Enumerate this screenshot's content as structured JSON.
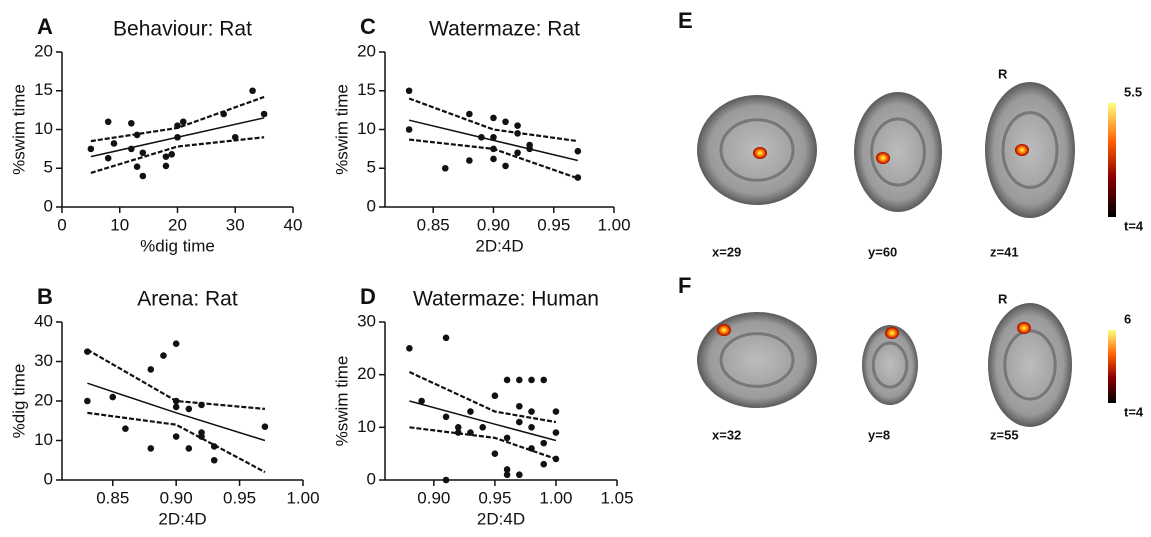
{
  "chart_data": [
    {
      "type": "scatter",
      "panel": "A",
      "title": "Behaviour:  Rat",
      "xlabel": "%dig time",
      "ylabel": "%swim time",
      "xlim": [
        0,
        40
      ],
      "xticks": [
        0,
        10,
        20,
        30,
        40
      ],
      "ylim": [
        0,
        20
      ],
      "yticks": [
        0,
        5,
        10,
        15,
        20
      ],
      "x": [
        5,
        8,
        9,
        8,
        12,
        12,
        13,
        13,
        14,
        14,
        18,
        18,
        19,
        20,
        20,
        21,
        28,
        30,
        33,
        35
      ],
      "values": [
        7.5,
        11,
        8.2,
        6.3,
        10.8,
        7.5,
        9.3,
        5.2,
        4,
        7,
        5.3,
        6.5,
        6.8,
        9,
        10.5,
        11,
        12,
        9,
        15,
        12
      ],
      "fit_x": [
        5,
        20,
        35
      ],
      "fit": [
        6.5,
        9,
        11.5
      ],
      "ci_upper": [
        8.5,
        10.2,
        14.2
      ],
      "ci_lower": [
        4.4,
        7.8,
        9
      ]
    },
    {
      "type": "scatter",
      "panel": "B",
      "title": "Arena:  Rat",
      "xlabel": "2D:4D",
      "ylabel": "%dig time",
      "xlim": [
        0.81,
        1.0
      ],
      "xticks": [
        0.85,
        {
          "value": 0.9,
          "label": "0.90"
        },
        0.95,
        {
          "value": 1,
          "label": "1.00"
        }
      ],
      "ylim": [
        0,
        40
      ],
      "yticks": [
        0,
        10,
        20,
        30,
        40
      ],
      "x": [
        0.83,
        0.83,
        0.85,
        0.86,
        0.88,
        0.88,
        0.89,
        0.9,
        0.9,
        0.9,
        0.9,
        0.91,
        0.91,
        0.92,
        0.92,
        0.92,
        0.93,
        0.93,
        0.97
      ],
      "values": [
        32.5,
        20,
        21,
        13,
        8,
        28,
        31.5,
        34.5,
        20,
        11,
        18.5,
        8,
        18,
        19,
        12,
        11,
        8.5,
        5,
        13.5
      ],
      "fit_x": [
        0.83,
        0.9,
        0.97
      ],
      "fit": [
        24.5,
        17,
        10
      ],
      "ci_upper": [
        33,
        20,
        18
      ],
      "ci_lower": [
        17,
        14,
        2
      ]
    },
    {
      "type": "scatter",
      "panel": "C",
      "title": "Watermaze: Rat",
      "xlabel": "2D:4D",
      "ylabel": "%swim time",
      "xlim": [
        0.81,
        1.0
      ],
      "xticks": [
        0.85,
        {
          "value": 0.9,
          "label": "0.90"
        },
        0.95,
        {
          "value": 1,
          "label": "1.00"
        }
      ],
      "ylim": [
        0,
        20
      ],
      "yticks": [
        0,
        5,
        10,
        15,
        20
      ],
      "x": [
        0.83,
        0.83,
        0.86,
        0.88,
        0.88,
        0.89,
        0.9,
        0.9,
        0.9,
        0.9,
        0.91,
        0.91,
        0.92,
        0.92,
        0.92,
        0.93,
        0.93,
        0.97,
        0.97
      ],
      "values": [
        15,
        10,
        5,
        12,
        6,
        9,
        11.5,
        9,
        7.5,
        6.2,
        11,
        5.3,
        9.5,
        10.5,
        7,
        8,
        7.5,
        7.2,
        3.8
      ],
      "fit_x": [
        0.83,
        0.9,
        0.97
      ],
      "fit": [
        11.2,
        8.6,
        6
      ],
      "ci_upper": [
        14,
        10,
        8.5
      ],
      "ci_lower": [
        8.7,
        7.5,
        3.7
      ]
    },
    {
      "type": "scatter",
      "panel": "D",
      "title": "Watermaze: Human",
      "xlabel": "2D:4D",
      "ylabel": "%swim time",
      "xlim": [
        0.86,
        1.05
      ],
      "xticks": [
        {
          "value": 0.9,
          "label": "0.90"
        },
        0.95,
        {
          "value": 1,
          "label": "1.00"
        },
        1.05
      ],
      "ylim": [
        0,
        30
      ],
      "yticks": [
        0,
        10,
        20,
        30
      ],
      "x": [
        0.88,
        0.89,
        0.91,
        0.91,
        0.92,
        0.92,
        0.93,
        0.93,
        0.94,
        0.95,
        0.95,
        0.96,
        0.96,
        0.96,
        0.97,
        0.97,
        0.97,
        0.97,
        0.98,
        0.98,
        0.98,
        0.98,
        0.99,
        0.99,
        0.99,
        1.0,
        1.0,
        1.0,
        0.91,
        0.96
      ],
      "values": [
        25,
        15,
        27,
        12,
        9,
        10,
        13,
        9,
        10,
        16,
        5,
        2,
        19,
        8,
        19,
        14,
        11,
        1,
        19,
        13,
        10,
        6,
        19,
        3,
        7,
        13,
        9,
        4,
        0,
        1
      ],
      "fit_x": [
        0.88,
        0.95,
        1.0
      ],
      "fit": [
        15,
        10.6,
        7.5
      ],
      "ci_upper": [
        20.5,
        13,
        11
      ],
      "ci_lower": [
        10,
        8,
        4
      ]
    }
  ],
  "brain_panels": [
    {
      "panel": "E",
      "slices": [
        "x=29",
        "y=60",
        "z=41"
      ],
      "orientation": "R",
      "colorbar_ticks": [
        {
          "value": 4,
          "label": "t=4"
        },
        5.5
      ]
    },
    {
      "panel": "F",
      "slices": [
        "x=32",
        "y=8",
        "z=55"
      ],
      "orientation": "R",
      "colorbar_ticks": [
        {
          "value": 4,
          "label": "t=4"
        },
        6
      ]
    }
  ]
}
